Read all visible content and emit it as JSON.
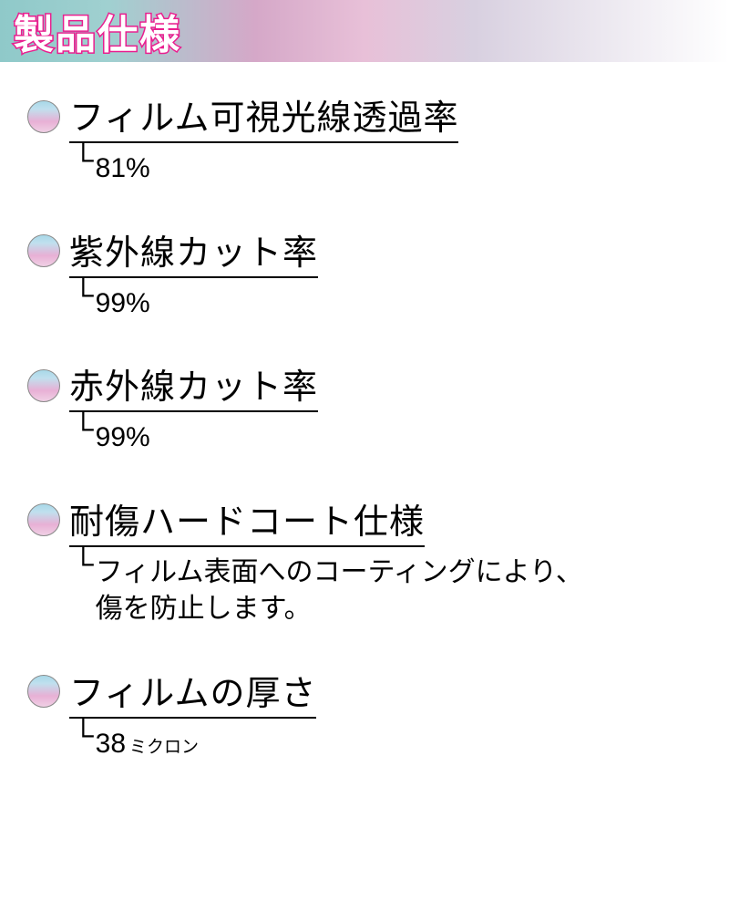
{
  "header": {
    "title": "製品仕様"
  },
  "specs": [
    {
      "title": "フィルム可視光線透過率",
      "value": "81%"
    },
    {
      "title": "紫外線カット率",
      "value": "99%"
    },
    {
      "title": "赤外線カット率",
      "value": "99%"
    },
    {
      "title": "耐傷ハードコート仕様",
      "value": "フィルム表面へのコーティングにより、\n傷を防止します。"
    },
    {
      "title": "フィルムの厚さ",
      "value": "38",
      "unit": "ミクロン"
    }
  ],
  "colors": {
    "header_gradient_start": "#8fc9c9",
    "header_gradient_mid": "#d5a8c8",
    "header_gradient_end": "#ffffff",
    "title_stroke": "#e91e8f",
    "title_fill": "#ffffff",
    "bullet_gradient_top": "#a8d8e8",
    "bullet_gradient_bottom": "#f0d0e5",
    "text": "#000000"
  }
}
